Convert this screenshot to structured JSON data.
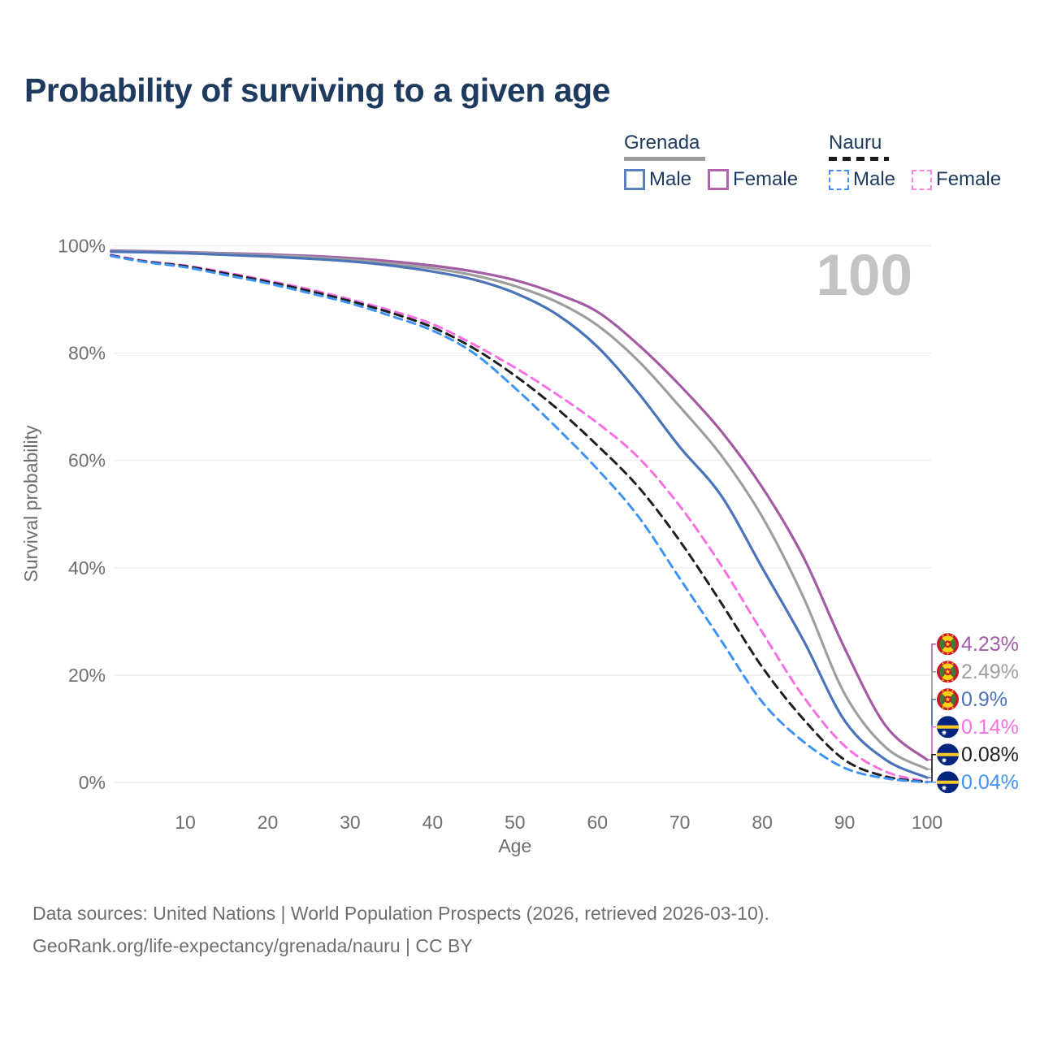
{
  "title": "Probability of surviving to a given age",
  "legend": {
    "groups": [
      {
        "country": "Grenada",
        "line_style": "solid",
        "line_color": "#9e9e9e",
        "items": [
          {
            "label": "Male",
            "color": "#5b7fbf",
            "style": "solid"
          },
          {
            "label": "Female",
            "color": "#b263af",
            "style": "solid"
          }
        ]
      },
      {
        "country": "Nauru",
        "line_style": "dashed",
        "line_color": "#1a1a1a",
        "items": [
          {
            "label": "Male",
            "color": "#4b8ff5",
            "style": "dashed"
          },
          {
            "label": "Female",
            "color": "#fb85e2",
            "style": "dashed"
          }
        ]
      }
    ]
  },
  "chart_data": {
    "type": "line",
    "title": "Probability of surviving to a given age",
    "xlabel": "Age",
    "ylabel": "Survival probability",
    "xlim": [
      0,
      100
    ],
    "ylim": [
      0,
      100
    ],
    "grid": "horizontal-only",
    "age_counter": "100",
    "x_ticks": [
      10,
      20,
      30,
      40,
      50,
      60,
      70,
      80,
      90,
      100
    ],
    "y_ticks": [
      {
        "value": 0,
        "label": "0%"
      },
      {
        "value": 20,
        "label": "20%"
      },
      {
        "value": 40,
        "label": "40%"
      },
      {
        "value": 60,
        "label": "60%"
      },
      {
        "value": 80,
        "label": "80%"
      },
      {
        "value": 100,
        "label": "100%"
      }
    ],
    "x": [
      1,
      5,
      10,
      15,
      20,
      25,
      30,
      35,
      40,
      45,
      50,
      55,
      60,
      65,
      70,
      75,
      80,
      85,
      90,
      95,
      100
    ],
    "series": [
      {
        "name": "Grenada Female",
        "country": "Grenada",
        "sex": "Female",
        "style": "solid",
        "color": "#a35ba4",
        "flag": "grenada",
        "end_label": "4.23%",
        "values": [
          99.1,
          99.0,
          98.8,
          98.6,
          98.4,
          98.1,
          97.7,
          97.1,
          96.3,
          95.2,
          93.6,
          91.1,
          87.7,
          81.5,
          74.0,
          65.5,
          55.0,
          42.0,
          25.0,
          10.5,
          4.23
        ]
      },
      {
        "name": "Grenada",
        "country": "Grenada",
        "sex": "Both",
        "style": "solid",
        "color": "#9e9e9e",
        "flag": "grenada",
        "end_label": "2.49%",
        "values": [
          99.0,
          98.9,
          98.7,
          98.5,
          98.2,
          97.9,
          97.4,
          96.7,
          95.8,
          94.5,
          92.5,
          89.6,
          85.2,
          78.5,
          70.0,
          61.0,
          49.5,
          34.5,
          16.5,
          6.5,
          2.49
        ]
      },
      {
        "name": "Grenada Male",
        "country": "Grenada",
        "sex": "Male",
        "style": "solid",
        "color": "#4a73b8",
        "flag": "grenada",
        "end_label": "0.9%",
        "values": [
          98.9,
          98.8,
          98.6,
          98.3,
          98.0,
          97.6,
          97.1,
          96.3,
          95.2,
          93.7,
          91.2,
          87.3,
          81.2,
          72.5,
          62.5,
          53.5,
          40.0,
          26.5,
          11.5,
          4.2,
          0.9
        ]
      },
      {
        "name": "Nauru Female",
        "country": "Nauru",
        "sex": "Female",
        "style": "dashed",
        "color": "#f76fe0",
        "flag": "nauru",
        "end_label": "0.14%",
        "values": [
          98.3,
          97.2,
          96.3,
          95.0,
          93.5,
          91.9,
          90.0,
          87.9,
          85.4,
          81.6,
          77.3,
          72.4,
          67.0,
          60.5,
          51.5,
          40.5,
          28.0,
          16.0,
          6.8,
          2.0,
          0.14
        ]
      },
      {
        "name": "Nauru",
        "country": "Nauru",
        "sex": "Both",
        "style": "dashed",
        "color": "#1f1f1f",
        "flag": "nauru",
        "end_label": "0.08%",
        "values": [
          98.2,
          97.1,
          96.2,
          94.8,
          93.3,
          91.6,
          89.7,
          87.5,
          84.8,
          80.9,
          75.8,
          69.8,
          62.8,
          55.0,
          45.0,
          33.5,
          21.5,
          11.8,
          4.2,
          1.1,
          0.08
        ]
      },
      {
        "name": "Nauru Male",
        "country": "Nauru",
        "sex": "Male",
        "style": "dashed",
        "color": "#3f93f2",
        "flag": "nauru",
        "end_label": "0.04%",
        "values": [
          98.1,
          97.0,
          96.0,
          94.5,
          93.0,
          91.2,
          89.3,
          86.9,
          84.2,
          80.0,
          73.5,
          66.2,
          58.4,
          49.5,
          38.0,
          26.5,
          15.0,
          7.6,
          2.7,
          0.75,
          0.04
        ]
      }
    ]
  },
  "footer": {
    "line1": "Data sources: United Nations | World Population Prospects (2026, retrieved 2026-03-10).",
    "line2": "GeoRank.org/life-expectancy/grenada/nauru | CC BY"
  }
}
